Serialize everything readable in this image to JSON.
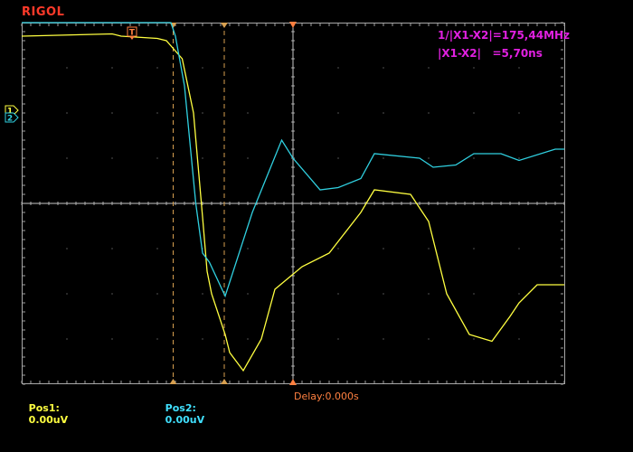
{
  "brand": "RIGOL",
  "measurements": {
    "freq": "1/|X1-X2|=175,44MHz",
    "delta": "|X1-X2|   =5,70ns"
  },
  "footer": {
    "pos1_label": "Pos1:",
    "pos1_value": "0.00uV",
    "pos2_label": "Pos2:",
    "pos2_value": "0.00uV",
    "delay": "Delay:0.000s"
  },
  "markers": {
    "trigger": "T",
    "ch1": "1",
    "ch2": "2"
  },
  "colors": {
    "ch1": "#ffff40",
    "ch2": "#30d0e0",
    "cursor": "#d8a050",
    "delay_marker": "#ff8040",
    "measure": "#e020e0",
    "brand": "#ff3a2a",
    "grid": "#a0a0a0"
  },
  "chart_data": {
    "type": "line",
    "grid": {
      "divisions_x": 12,
      "divisions_y": 8
    },
    "ylim": [
      -4,
      4
    ],
    "xlim": [
      -6,
      6
    ],
    "cursors_x": [
      -2.65,
      -1.52
    ],
    "series": [
      {
        "channel": "CH1",
        "x": [
          -6.0,
          -4.0,
          -3.8,
          -3.0,
          -2.8,
          -2.45,
          -2.2,
          -2.0,
          -1.9,
          -1.8,
          -1.5,
          -1.4,
          -1.1,
          -0.7,
          -0.4,
          0.2,
          0.8,
          1.5,
          1.8,
          2.6,
          3.0,
          3.4,
          3.9,
          4.4,
          4.8,
          5.0,
          5.4,
          6.0
        ],
        "y": [
          3.7,
          3.75,
          3.7,
          3.65,
          3.6,
          3.2,
          2.0,
          -0.3,
          -1.5,
          -2.0,
          -2.9,
          -3.3,
          -3.7,
          -3.0,
          -1.9,
          -1.4,
          -1.1,
          -0.2,
          0.3,
          0.2,
          -0.4,
          -2.0,
          -2.9,
          -3.05,
          -2.5,
          -2.2,
          -1.8,
          -1.8
        ]
      },
      {
        "channel": "CH2",
        "x": [
          -6.0,
          -2.7,
          -2.6,
          -2.4,
          -2.15,
          -2.0,
          -1.85,
          -1.5,
          -0.9,
          -0.25,
          0.0,
          0.6,
          1.0,
          1.5,
          1.8,
          2.8,
          3.1,
          3.6,
          4.0,
          4.6,
          5.0,
          5.8,
          6.0
        ],
        "y": [
          4.0,
          4.0,
          3.7,
          2.6,
          0.0,
          -1.1,
          -1.3,
          -2.05,
          -0.2,
          1.4,
          1.0,
          0.3,
          0.35,
          0.55,
          1.1,
          1.0,
          0.8,
          0.85,
          1.1,
          1.1,
          0.95,
          1.2,
          1.2
        ]
      }
    ]
  }
}
